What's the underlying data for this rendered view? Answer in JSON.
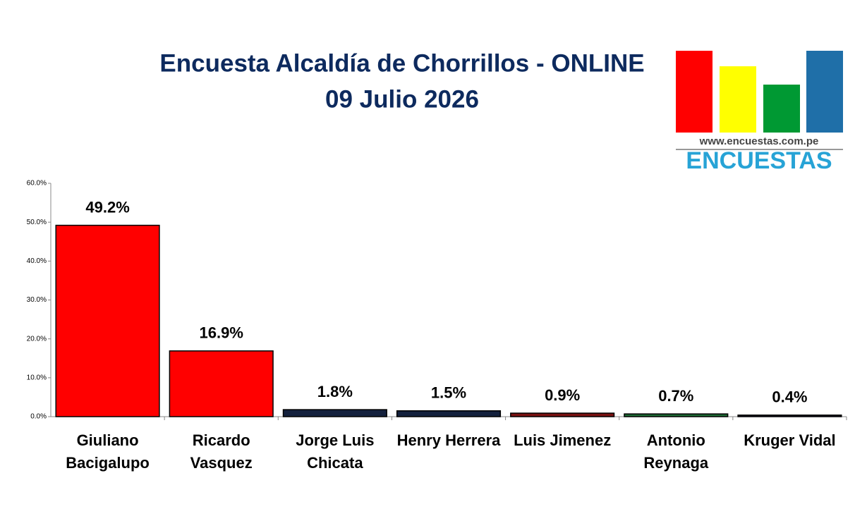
{
  "chart_data": {
    "type": "bar",
    "title": "Encuesta Alcaldía de Chorrillos - ONLINE",
    "subtitle": "09 Julio 2026",
    "categories": [
      "Giuliano Bacigalupo",
      "Ricardo Vasquez",
      "Jorge Luis Chicata",
      "Henry Herrera",
      "Luis Jimenez",
      "Antonio Reynaga",
      "Kruger Vidal"
    ],
    "values": [
      49.2,
      16.9,
      1.8,
      1.5,
      0.9,
      0.7,
      0.4
    ],
    "value_labels": [
      "49.2%",
      "16.9%",
      "1.8%",
      "1.5%",
      "0.9%",
      "0.7%",
      "0.4%"
    ],
    "colors": [
      "#ff0000",
      "#ff0000",
      "#14213d",
      "#14213d",
      "#7a1212",
      "#1e6b35",
      "#101030"
    ],
    "ylim": [
      0,
      60
    ],
    "yticks": [
      {
        "value": 0,
        "label": "0.0%"
      },
      {
        "value": 10,
        "label": "10.0%"
      },
      {
        "value": 20,
        "label": "20.0%"
      },
      {
        "value": 30,
        "label": "30.0%"
      },
      {
        "value": 40,
        "label": "40.0%"
      },
      {
        "value": 50,
        "label": "50.0%"
      },
      {
        "value": 60,
        "label": "60.0%"
      }
    ],
    "grid": false
  },
  "logo": {
    "url": "www.encuestas.com.pe",
    "name": "ENCUESTAS"
  }
}
